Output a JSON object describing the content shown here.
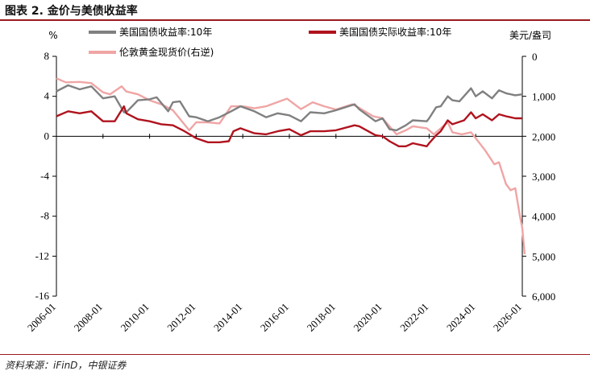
{
  "header": {
    "title": "图表 2. 金价与美债收益率"
  },
  "footer": {
    "source": "资料来源：iFinD，中银证券"
  },
  "colors": {
    "nominal": "#808080",
    "real": "#b0131e",
    "gold": "#f0a5a5",
    "accent": "#9b1b1e"
  },
  "chart_data": {
    "type": "line",
    "left_unit": "%",
    "right_unit": "美元/盎司",
    "left_axis": {
      "min": -16,
      "max": 8,
      "ticks": [
        8,
        4,
        0,
        -4,
        -8,
        -12,
        -16
      ]
    },
    "right_axis": {
      "min": 0,
      "max": 6000,
      "inverted": true,
      "ticks": [
        0,
        1000,
        2000,
        3000,
        4000,
        5000,
        6000
      ],
      "tick_labels": [
        "0",
        "1,000",
        "2,000",
        "3,000",
        "4,000",
        "5,000",
        "6,000"
      ]
    },
    "x_ticks": [
      "2006-01",
      "2008-01",
      "2010-01",
      "2012-01",
      "2014-01",
      "2016-01",
      "2018-01",
      "2020-01",
      "2022-01",
      "2024-01",
      "2026-01"
    ],
    "x_range": [
      2006.0,
      2026.0
    ],
    "legend": [
      "美国国债收益率:10年",
      "美国国债实际收益率:10年",
      "伦敦黄金现货价(右逆)"
    ],
    "series": [
      {
        "name": "美国国债收益率:10年",
        "axis": "left",
        "points": [
          [
            2006.0,
            4.5
          ],
          [
            2006.5,
            5.1
          ],
          [
            2007.0,
            4.7
          ],
          [
            2007.5,
            5.0
          ],
          [
            2008.0,
            3.8
          ],
          [
            2008.5,
            4.0
          ],
          [
            2008.9,
            2.4
          ],
          [
            2009.0,
            2.4
          ],
          [
            2009.5,
            3.6
          ],
          [
            2010.0,
            3.7
          ],
          [
            2010.3,
            3.9
          ],
          [
            2010.8,
            2.5
          ],
          [
            2011.0,
            3.4
          ],
          [
            2011.3,
            3.5
          ],
          [
            2011.7,
            2.0
          ],
          [
            2012.0,
            1.9
          ],
          [
            2012.5,
            1.5
          ],
          [
            2013.0,
            1.9
          ],
          [
            2013.5,
            2.5
          ],
          [
            2013.9,
            3.0
          ],
          [
            2014.5,
            2.5
          ],
          [
            2015.0,
            1.9
          ],
          [
            2015.5,
            2.3
          ],
          [
            2016.0,
            2.1
          ],
          [
            2016.5,
            1.5
          ],
          [
            2016.9,
            2.4
          ],
          [
            2017.5,
            2.3
          ],
          [
            2018.0,
            2.6
          ],
          [
            2018.8,
            3.2
          ],
          [
            2019.0,
            2.7
          ],
          [
            2019.7,
            1.5
          ],
          [
            2020.0,
            1.8
          ],
          [
            2020.3,
            0.7
          ],
          [
            2020.6,
            0.6
          ],
          [
            2021.0,
            1.1
          ],
          [
            2021.3,
            1.6
          ],
          [
            2021.9,
            1.5
          ],
          [
            2022.0,
            1.8
          ],
          [
            2022.3,
            2.9
          ],
          [
            2022.5,
            3.0
          ],
          [
            2022.8,
            4.0
          ],
          [
            2023.0,
            3.6
          ],
          [
            2023.3,
            3.5
          ],
          [
            2023.8,
            4.8
          ],
          [
            2024.0,
            4.0
          ],
          [
            2024.3,
            4.5
          ],
          [
            2024.7,
            3.8
          ],
          [
            2025.0,
            4.6
          ],
          [
            2025.3,
            4.3
          ],
          [
            2025.7,
            4.1
          ],
          [
            2026.0,
            4.2
          ]
        ]
      },
      {
        "name": "美国国债实际收益率:10年",
        "axis": "left",
        "points": [
          [
            2006.0,
            2.0
          ],
          [
            2006.5,
            2.5
          ],
          [
            2007.0,
            2.3
          ],
          [
            2007.5,
            2.5
          ],
          [
            2008.0,
            1.5
          ],
          [
            2008.5,
            1.5
          ],
          [
            2008.9,
            3.0
          ],
          [
            2009.0,
            2.3
          ],
          [
            2009.5,
            1.7
          ],
          [
            2010.0,
            1.5
          ],
          [
            2010.5,
            1.2
          ],
          [
            2011.0,
            1.1
          ],
          [
            2011.5,
            0.5
          ],
          [
            2012.0,
            -0.2
          ],
          [
            2012.5,
            -0.6
          ],
          [
            2013.0,
            -0.6
          ],
          [
            2013.4,
            -0.5
          ],
          [
            2013.6,
            0.5
          ],
          [
            2013.9,
            0.8
          ],
          [
            2014.5,
            0.3
          ],
          [
            2015.0,
            0.2
          ],
          [
            2015.5,
            0.5
          ],
          [
            2016.0,
            0.7
          ],
          [
            2016.5,
            0.1
          ],
          [
            2016.9,
            0.5
          ],
          [
            2017.5,
            0.5
          ],
          [
            2018.0,
            0.6
          ],
          [
            2018.8,
            1.1
          ],
          [
            2019.0,
            1.0
          ],
          [
            2019.7,
            0.1
          ],
          [
            2020.0,
            0.0
          ],
          [
            2020.3,
            -0.5
          ],
          [
            2020.7,
            -1.0
          ],
          [
            2021.0,
            -1.0
          ],
          [
            2021.3,
            -0.7
          ],
          [
            2021.9,
            -1.0
          ],
          [
            2022.0,
            -0.7
          ],
          [
            2022.3,
            0.1
          ],
          [
            2022.5,
            0.5
          ],
          [
            2022.8,
            1.6
          ],
          [
            2023.0,
            1.2
          ],
          [
            2023.5,
            1.6
          ],
          [
            2023.8,
            2.4
          ],
          [
            2024.0,
            1.8
          ],
          [
            2024.3,
            2.2
          ],
          [
            2024.7,
            1.6
          ],
          [
            2025.0,
            2.2
          ],
          [
            2025.3,
            2.0
          ],
          [
            2025.7,
            1.8
          ],
          [
            2026.0,
            1.8
          ]
        ]
      },
      {
        "name": "伦敦黄金现货价(右逆)",
        "axis": "right",
        "points": [
          [
            2006.0,
            550
          ],
          [
            2006.4,
            650
          ],
          [
            2007.0,
            640
          ],
          [
            2007.5,
            670
          ],
          [
            2008.0,
            900
          ],
          [
            2008.3,
            950
          ],
          [
            2008.8,
            750
          ],
          [
            2009.0,
            880
          ],
          [
            2009.5,
            950
          ],
          [
            2010.0,
            1100
          ],
          [
            2010.5,
            1200
          ],
          [
            2011.0,
            1350
          ],
          [
            2011.7,
            1850
          ],
          [
            2012.0,
            1650
          ],
          [
            2012.5,
            1650
          ],
          [
            2013.0,
            1680
          ],
          [
            2013.5,
            1250
          ],
          [
            2014.0,
            1250
          ],
          [
            2014.5,
            1300
          ],
          [
            2015.0,
            1250
          ],
          [
            2015.9,
            1060
          ],
          [
            2016.5,
            1320
          ],
          [
            2017.0,
            1150
          ],
          [
            2017.5,
            1250
          ],
          [
            2018.0,
            1330
          ],
          [
            2018.7,
            1200
          ],
          [
            2019.0,
            1290
          ],
          [
            2019.6,
            1500
          ],
          [
            2020.0,
            1550
          ],
          [
            2020.6,
            1950
          ],
          [
            2021.0,
            1850
          ],
          [
            2021.3,
            1750
          ],
          [
            2021.9,
            1800
          ],
          [
            2022.2,
            1950
          ],
          [
            2022.8,
            1650
          ],
          [
            2023.0,
            1900
          ],
          [
            2023.4,
            1950
          ],
          [
            2023.8,
            1900
          ],
          [
            2024.0,
            2050
          ],
          [
            2024.4,
            2350
          ],
          [
            2024.8,
            2700
          ],
          [
            2025.0,
            2650
          ],
          [
            2025.3,
            3200
          ],
          [
            2025.5,
            3350
          ],
          [
            2025.7,
            3300
          ],
          [
            2025.9,
            4000
          ],
          [
            2026.0,
            4300
          ],
          [
            2026.1,
            4950
          ]
        ]
      }
    ]
  }
}
